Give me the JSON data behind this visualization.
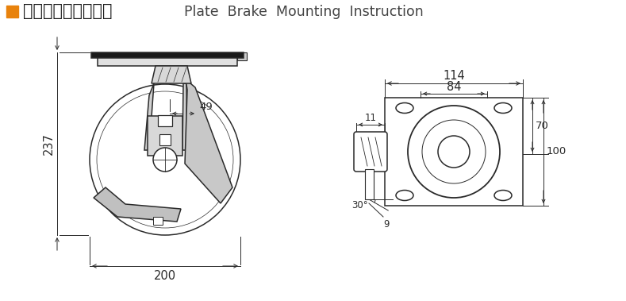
{
  "bg_color": "#ffffff",
  "line_color": "#2a2a2a",
  "dim_color": "#2a2a2a",
  "dim_fontsize": 10.5,
  "title_cn": "平顶刹车安装尺寸图",
  "title_en": "Plate  Brake  Mounting  Instruction",
  "title_cn_fontsize": 15,
  "title_en_fontsize": 12.5,
  "orange_color": "#E8820C",
  "dims": {
    "left_height": "237",
    "left_width": "200",
    "left_inner": "49",
    "right_w1": "114",
    "right_w2": "84",
    "right_h1": "70",
    "right_h2": "100",
    "angle": "30°",
    "bolt_d": "9",
    "side_t": "11"
  }
}
